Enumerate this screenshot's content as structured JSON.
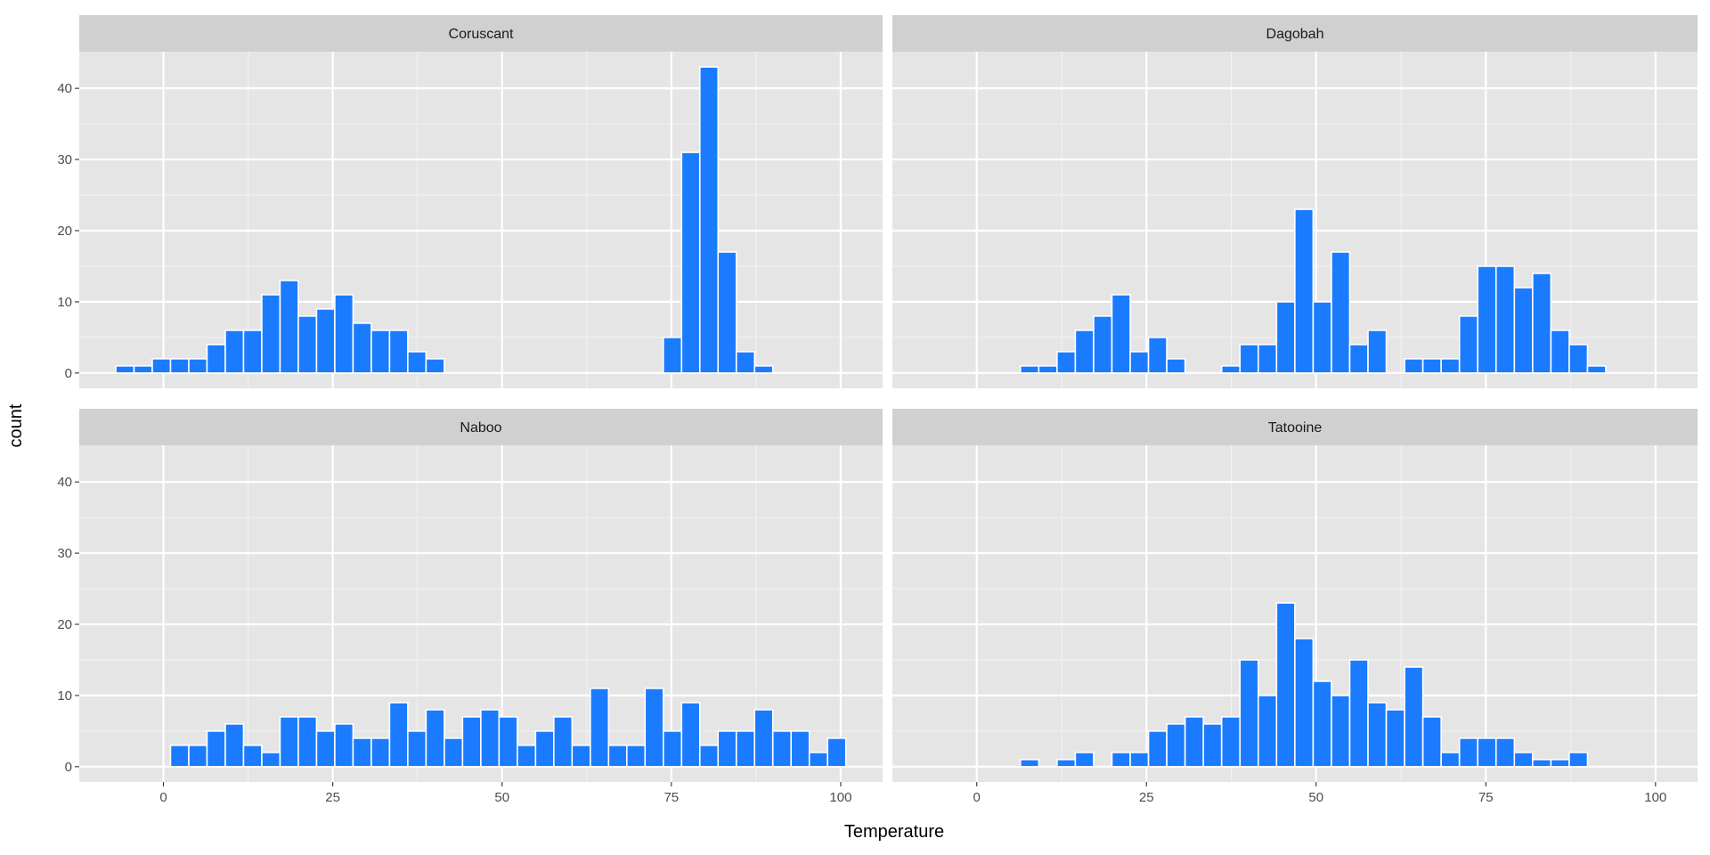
{
  "chart_data": {
    "type": "bar",
    "subtype": "histogram-faceted",
    "xlabel": "Temperature",
    "ylabel": "count",
    "xlim": [
      -7.04,
      100.8
    ],
    "ylim": [
      0,
      43
    ],
    "x_ticks": [
      "0",
      "25",
      "50",
      "75",
      "100"
    ],
    "x_tick_values": [
      0,
      25,
      50,
      75,
      100
    ],
    "y_ticks": [
      "0",
      "10",
      "20",
      "30",
      "40"
    ],
    "y_tick_values": [
      0,
      10,
      20,
      30,
      40
    ],
    "bins": {
      "start": -7.04,
      "width": 2.695,
      "count": 40
    },
    "grid": true,
    "fill_color": "#1b7bff",
    "outline_color": "#ffffff",
    "panel_background": "#e5e5e5",
    "strip_background": "#d0d0d0",
    "facets": [
      {
        "name": "Coruscant",
        "counts": [
          1,
          1,
          2,
          2,
          2,
          4,
          6,
          6,
          11,
          13,
          8,
          9,
          11,
          7,
          6,
          6,
          3,
          2,
          0,
          0,
          0,
          0,
          0,
          0,
          0,
          0,
          0,
          0,
          0,
          0,
          5,
          31,
          43,
          17,
          3,
          1,
          0,
          0,
          0,
          0
        ]
      },
      {
        "name": "Dagobah",
        "counts": [
          0,
          0,
          0,
          0,
          0,
          1,
          1,
          3,
          6,
          8,
          11,
          3,
          5,
          2,
          0,
          0,
          1,
          4,
          4,
          10,
          23,
          10,
          17,
          4,
          6,
          0,
          2,
          2,
          2,
          8,
          15,
          15,
          12,
          14,
          6,
          4,
          1,
          0,
          0,
          0
        ]
      },
      {
        "name": "Naboo",
        "counts": [
          0,
          0,
          0,
          3,
          3,
          5,
          6,
          3,
          2,
          7,
          7,
          5,
          6,
          4,
          4,
          9,
          5,
          8,
          4,
          7,
          8,
          7,
          3,
          5,
          7,
          3,
          11,
          3,
          3,
          11,
          5,
          9,
          3,
          5,
          5,
          8,
          5,
          5,
          2,
          4
        ]
      },
      {
        "name": "Tatooine",
        "counts": [
          0,
          0,
          0,
          0,
          0,
          1,
          0,
          1,
          2,
          0,
          2,
          2,
          5,
          6,
          7,
          6,
          7,
          15,
          10,
          23,
          18,
          12,
          10,
          15,
          9,
          8,
          14,
          7,
          2,
          4,
          4,
          4,
          2,
          1,
          1,
          2,
          0,
          0,
          0,
          0
        ]
      }
    ]
  }
}
